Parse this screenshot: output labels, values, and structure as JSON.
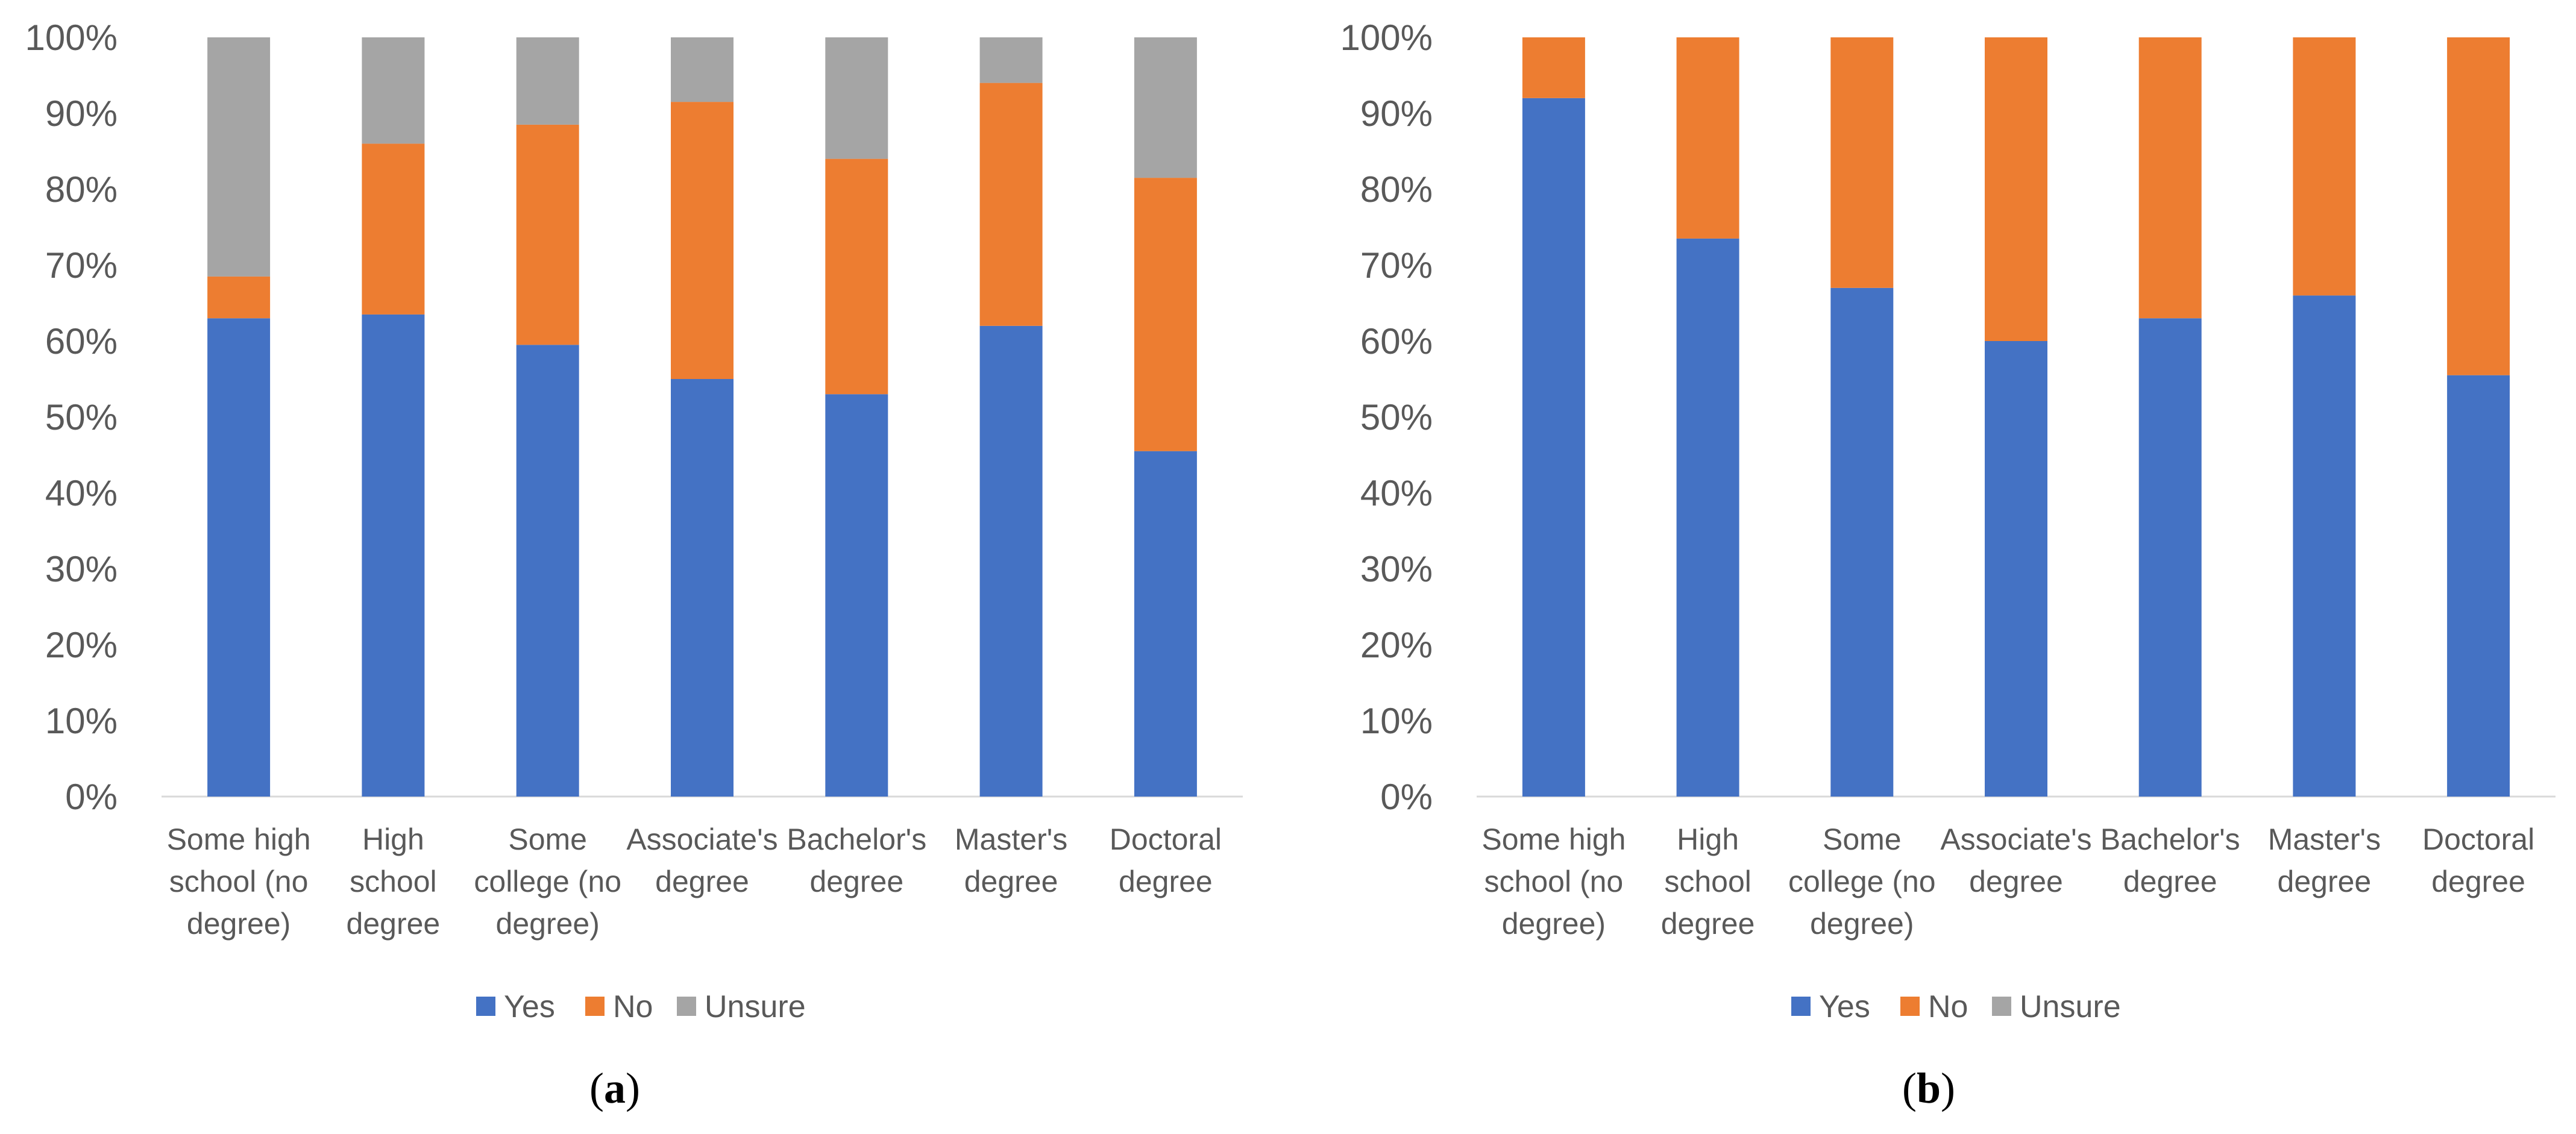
{
  "chart_data": [
    {
      "type": "bar",
      "stacked": true,
      "panel": "a",
      "categories": [
        [
          "Some high",
          "school (no",
          "degree)"
        ],
        [
          "High",
          "school",
          "degree"
        ],
        [
          "Some",
          "college (no",
          "degree)"
        ],
        [
          "Associate's",
          "degree"
        ],
        [
          "Bachelor's",
          "degree"
        ],
        [
          "Master's",
          "degree"
        ],
        [
          "Doctoral",
          "degree"
        ]
      ],
      "series": [
        {
          "name": "Yes",
          "values": [
            63,
            63.5,
            59.5,
            55,
            53,
            62,
            45.5
          ]
        },
        {
          "name": "No",
          "values": [
            5.5,
            22.5,
            29,
            36.5,
            31,
            32,
            36
          ]
        },
        {
          "name": "Unsure",
          "values": [
            31.5,
            14,
            11.5,
            8.5,
            16,
            6,
            18.5
          ]
        }
      ],
      "ylim": [
        0,
        100
      ],
      "yticks": [
        "0%",
        "10%",
        "20%",
        "30%",
        "40%",
        "50%",
        "60%",
        "70%",
        "80%",
        "90%",
        "100%"
      ],
      "legend": [
        "Yes",
        "No",
        "Unsure"
      ],
      "legend_position": "bottom",
      "title": "",
      "xlabel": "",
      "ylabel": ""
    },
    {
      "type": "bar",
      "stacked": true,
      "panel": "b",
      "categories": [
        [
          "Some high",
          "school (no",
          "degree)"
        ],
        [
          "High",
          "school",
          "degree"
        ],
        [
          "Some",
          "college (no",
          "degree)"
        ],
        [
          "Associate's",
          "degree"
        ],
        [
          "Bachelor's",
          "degree"
        ],
        [
          "Master's",
          "degree"
        ],
        [
          "Doctoral",
          "degree"
        ]
      ],
      "series": [
        {
          "name": "Yes",
          "values": [
            92,
            73.5,
            67,
            60,
            63,
            66,
            55.5
          ]
        },
        {
          "name": "No",
          "values": [
            8,
            26.5,
            33,
            40,
            37,
            34,
            44.5
          ]
        },
        {
          "name": "Unsure",
          "values": [
            0,
            0,
            0,
            0,
            0,
            0,
            0
          ]
        }
      ],
      "ylim": [
        0,
        100
      ],
      "yticks": [
        "0%",
        "10%",
        "20%",
        "30%",
        "40%",
        "50%",
        "60%",
        "70%",
        "80%",
        "90%",
        "100%"
      ],
      "legend": [
        "Yes",
        "No",
        "Unsure"
      ],
      "legend_position": "bottom",
      "title": "",
      "xlabel": "",
      "ylabel": ""
    }
  ],
  "colors": {
    "Yes": "#4472c4",
    "No": "#ed7d31",
    "Unsure": "#a5a5a5",
    "axis": "#d9d9d9",
    "text": "#595959"
  },
  "panel_labels": [
    {
      "open": "(",
      "letter": "a",
      "close": ")"
    },
    {
      "open": "(",
      "letter": "b",
      "close": ")"
    }
  ]
}
